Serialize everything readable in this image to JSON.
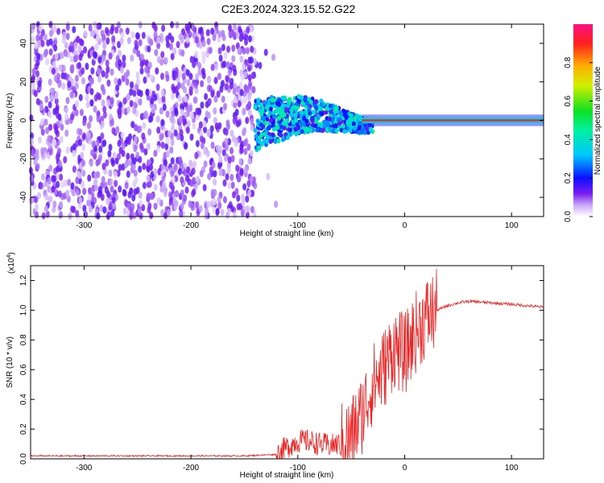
{
  "page_title": "C2E3.2024.323.15.52.G22",
  "chart_data": [
    {
      "type": "heatmap",
      "title": "C2E3.2024.323.15.52.G22",
      "xlabel": "Height of straight line (km)",
      "ylabel": "Frequency (Hz)",
      "xlim": [
        -350,
        130
      ],
      "ylim": [
        -50,
        50
      ],
      "xticks": [
        -300,
        -200,
        -100,
        0,
        100
      ],
      "yticks": [
        -40,
        -20,
        0,
        20,
        40
      ],
      "colorbar": {
        "label": "Normalized spectral amplitude",
        "range": [
          0,
          1
        ],
        "ticks": [
          0.0,
          0.2,
          0.4,
          0.6,
          0.8
        ]
      },
      "description_regions": [
        {
          "x_range": [
            -350,
            -140
          ],
          "freq_spread": [
            -50,
            50
          ],
          "amplitude": 0.1
        },
        {
          "x_range": [
            -140,
            -40
          ],
          "freq_spread": [
            -15,
            15
          ],
          "amplitude": 0.3
        },
        {
          "x_range": [
            -40,
            130
          ],
          "freq_spread": [
            -2,
            2
          ],
          "amplitude": 0.95
        }
      ]
    },
    {
      "type": "line",
      "xlabel": "Height of straight line (km)",
      "ylabel": "SNR (10 * v/v)",
      "yscale_label": "(x10",
      "yscale_exp": "4",
      "yscale_close": ")",
      "xlim": [
        -350,
        130
      ],
      "ylim": [
        0,
        1.3
      ],
      "xticks": [
        -300,
        -200,
        -100,
        0,
        100
      ],
      "yticks": [
        0.0,
        0.2,
        0.4,
        0.6,
        0.8,
        1.0,
        1.2
      ],
      "series": [
        {
          "name": "SNR",
          "color": "#ee2222",
          "x": [
            -350,
            -250,
            -150,
            -120,
            -110,
            -100,
            -90,
            -80,
            -70,
            -60,
            -50,
            -40,
            -30,
            -20,
            -10,
            0,
            10,
            20,
            30,
            40,
            50,
            60,
            80,
            100,
            130
          ],
          "y": [
            0.02,
            0.02,
            0.02,
            0.03,
            0.08,
            0.12,
            0.12,
            0.1,
            0.09,
            0.1,
            0.15,
            0.3,
            0.5,
            0.6,
            0.75,
            0.7,
            0.85,
            0.95,
            1.0,
            1.03,
            1.05,
            1.06,
            1.05,
            1.04,
            1.02
          ]
        }
      ]
    }
  ]
}
